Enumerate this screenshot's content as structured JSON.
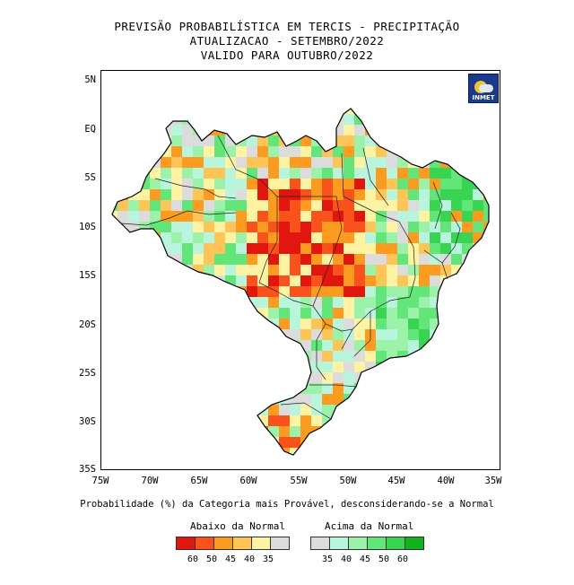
{
  "title": {
    "line1": "PREVISÃO PROBABILÍSTICA EM TERCIS - PRECIPITAÇÃO",
    "line2": "ATUALIZACAO - SETEMBRO/2022",
    "line3": "VALIDO PARA OUTUBRO/2022"
  },
  "logo": {
    "text": "INMET"
  },
  "axes": {
    "lat_labels": [
      "5N",
      "EQ",
      "5S",
      "10S",
      "15S",
      "20S",
      "25S",
      "30S",
      "35S"
    ],
    "lon_labels": [
      "75W",
      "70W",
      "65W",
      "60W",
      "55W",
      "50W",
      "45W",
      "40W",
      "35W"
    ]
  },
  "caption": "Probabilidade (%) da Categoria mais Provável, desconsiderando-se a Normal",
  "legend": {
    "below": {
      "title": "Abaixo da Normal",
      "colors": [
        "#e1160e",
        "#f9521d",
        "#fb9b1f",
        "#fdc457",
        "#fdf3a3",
        "#dcdcdc"
      ],
      "labels": [
        "60",
        "50",
        "45",
        "40",
        "35"
      ]
    },
    "above": {
      "title": "Acima da Normal",
      "colors": [
        "#dcdcdc",
        "#b8f5dc",
        "#9cf2a8",
        "#62e67a",
        "#38d452",
        "#12b21f"
      ],
      "labels": [
        "35",
        "40",
        "45",
        "50",
        "60"
      ]
    }
  }
}
